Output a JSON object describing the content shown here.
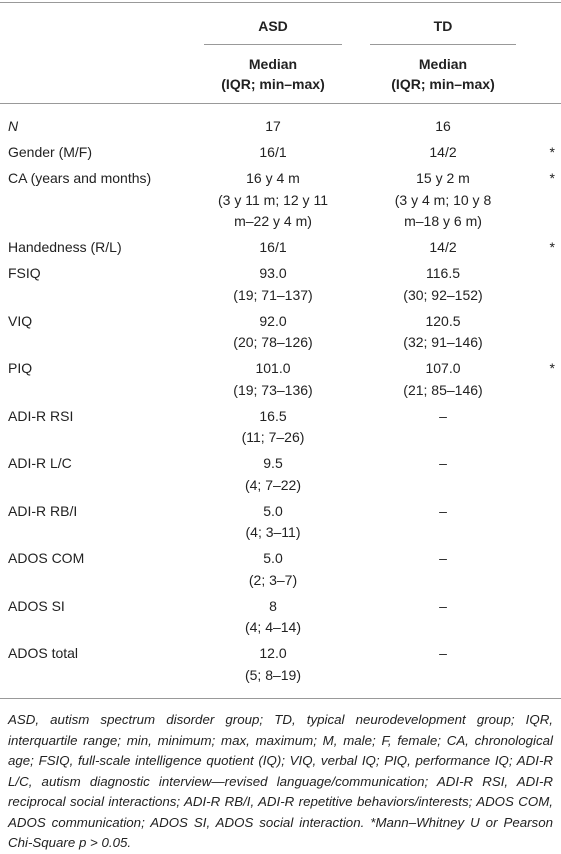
{
  "header": {
    "columns": [
      "ASD",
      "TD"
    ],
    "subheaders": [
      [
        "Median",
        "(IQR; min–max)"
      ],
      [
        "Median",
        "(IQR; min–max)"
      ]
    ]
  },
  "table": {
    "rows": [
      {
        "label": "N",
        "asd": [
          "17"
        ],
        "td": [
          "16"
        ]
      },
      {
        "label": "Gender (M/F)",
        "asd": [
          "16/1"
        ],
        "td": [
          "14/2"
        ],
        "sig": "*"
      },
      {
        "label": "CA (years and months)",
        "asd": [
          "16 y 4 m",
          "(3 y 11 m; 12 y 11",
          "m–22 y 4 m)"
        ],
        "td": [
          "15 y 2 m",
          "(3 y 4 m; 10 y 8",
          "m–18 y 6 m)"
        ],
        "sig": "*"
      },
      {
        "label": "Handedness (R/L)",
        "asd": [
          "16/1"
        ],
        "td": [
          "14/2"
        ],
        "sig": "*"
      },
      {
        "label": "FSIQ",
        "asd": [
          "93.0",
          "(19; 71–137)"
        ],
        "td": [
          "116.5",
          "(30; 92–152)"
        ]
      },
      {
        "label": "VIQ",
        "asd": [
          "92.0",
          "(20; 78–126)"
        ],
        "td": [
          "120.5",
          "(32; 91–146)"
        ]
      },
      {
        "label": "PIQ",
        "asd": [
          "101.0",
          "(19; 73–136)"
        ],
        "td": [
          "107.0",
          "(21; 85–146)"
        ],
        "sig": "*"
      },
      {
        "label": "ADI-R RSI",
        "asd": [
          "16.5",
          "(11; 7–26)"
        ],
        "td": [
          "–"
        ]
      },
      {
        "label": "ADI-R L/C",
        "asd": [
          "9.5",
          "(4; 7–22)"
        ],
        "td": [
          "–"
        ]
      },
      {
        "label": "ADI-R RB/I",
        "asd": [
          "5.0",
          "(4; 3–11)"
        ],
        "td": [
          "–"
        ]
      },
      {
        "label": "ADOS COM",
        "asd": [
          "5.0",
          "(2; 3–7)"
        ],
        "td": [
          "–"
        ]
      },
      {
        "label": "ADOS SI",
        "asd": [
          "8",
          "(4; 4–14)"
        ],
        "td": [
          "–"
        ]
      },
      {
        "label": "ADOS total",
        "asd": [
          "12.0",
          "(5; 8–19)"
        ],
        "td": [
          "–"
        ]
      }
    ]
  },
  "footnote": {
    "text": "ASD, autism spectrum disorder group; TD, typical neurodevelopment group; IQR, interquartile range; min, minimum; max, maximum; M, male; F, female; CA, chronological age; FSIQ, full-scale intelligence quotient (IQ); VIQ, verbal IQ; PIQ, performance IQ; ADI-R L/C, autism diagnostic interview—revised language/communication; ADI-R RSI, ADI-R reciprocal social interactions; ADI-R RB/I, ADI-R repetitive behaviors/interests; ADOS COM, ADOS communication; ADOS SI, ADOS social interaction.",
    "significance": "*Mann–Whitney U or Pearson Chi-Square p > 0.05."
  }
}
